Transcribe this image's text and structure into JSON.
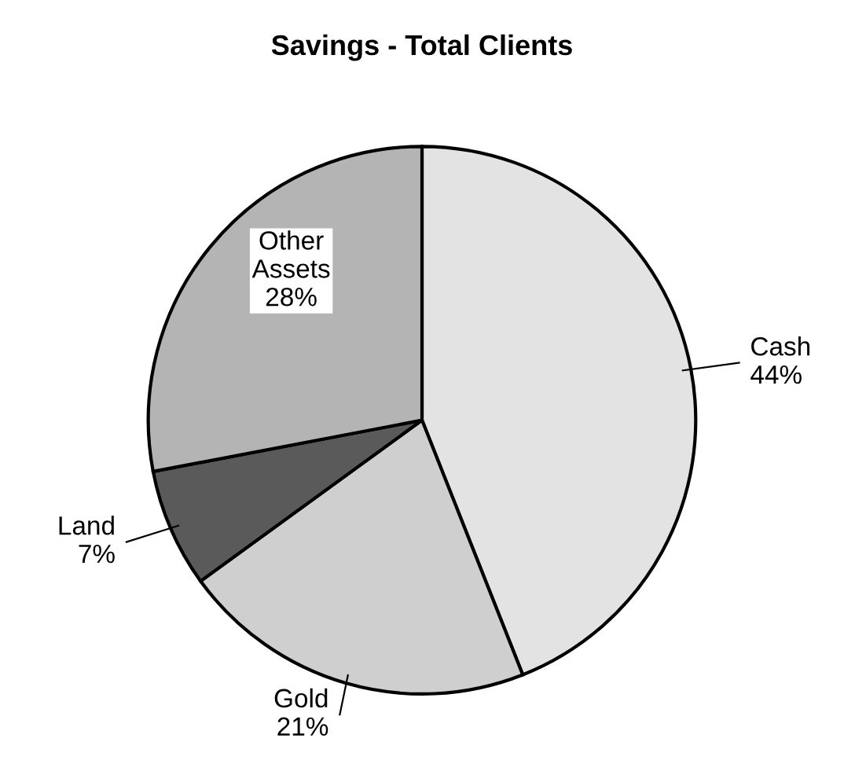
{
  "chart_data": {
    "type": "pie",
    "title": "Savings - Total Clients",
    "categories": [
      "Cash",
      "Gold",
      "Land",
      "Other Assets"
    ],
    "values": [
      44,
      21,
      7,
      28
    ],
    "value_labels": [
      "44%",
      "21%",
      "7%",
      "28%"
    ],
    "colors": [
      "#e3e3e3",
      "#cfcfcf",
      "#5a5a5a",
      "#b4b4b4"
    ],
    "legend": false
  }
}
